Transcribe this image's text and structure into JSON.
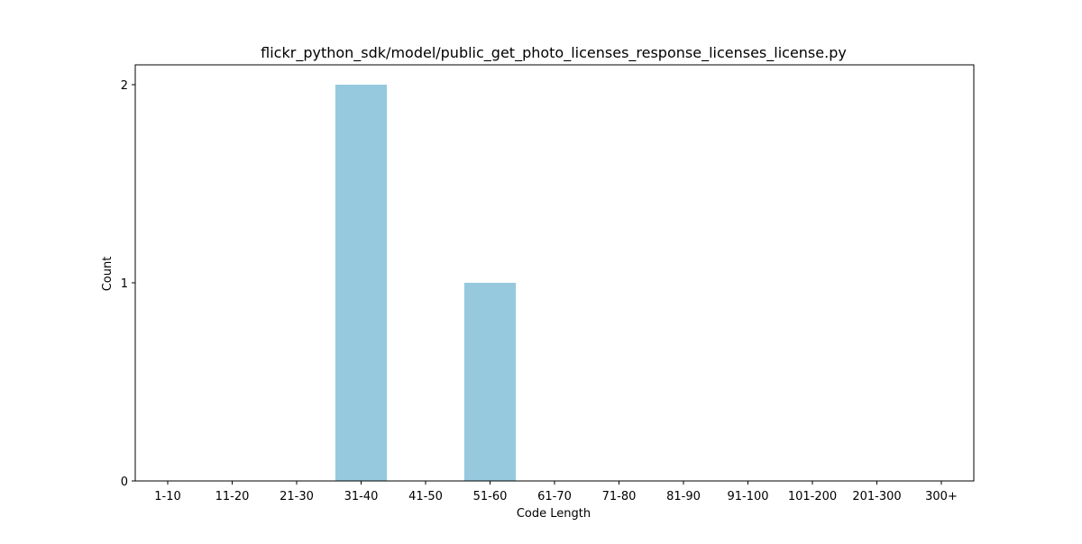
{
  "chart_data": {
    "type": "bar",
    "title": "flickr_python_sdk/model/public_get_photo_licenses_response_licenses_license.py",
    "xlabel": "Code Length",
    "ylabel": "Count",
    "categories": [
      "1-10",
      "11-20",
      "21-30",
      "31-40",
      "41-50",
      "51-60",
      "61-70",
      "71-80",
      "81-90",
      "91-100",
      "101-200",
      "201-300",
      "300+"
    ],
    "values": [
      0,
      0,
      0,
      2,
      0,
      1,
      0,
      0,
      0,
      0,
      0,
      0,
      0
    ],
    "yticks": [
      "0",
      "1",
      "2"
    ],
    "ylim": [
      0,
      2.1
    ],
    "grid": false,
    "bar_color": "#96c9de"
  }
}
